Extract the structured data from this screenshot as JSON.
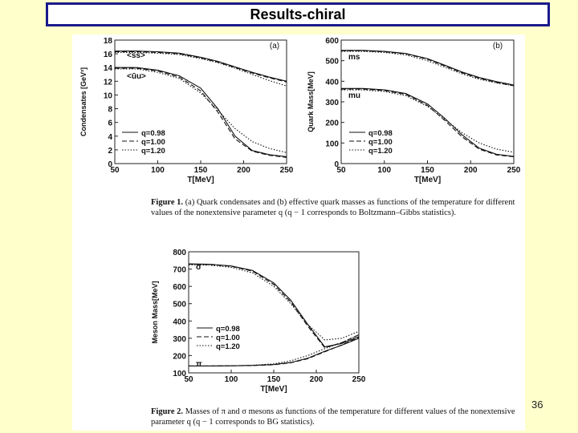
{
  "slide": {
    "title": "Results-chiral",
    "page_number": "36"
  },
  "captions": {
    "fig1_label": "Figure 1.",
    "fig1_text": "(a) Quark condensates and (b) effective quark masses as functions of the temperature for different values of the nonextensive parameter q (q − 1 corresponds to Boltzmann–Gibbs statistics).",
    "fig2_label": "Figure 2.",
    "fig2_text": "Masses of π and σ mesons as functions of the temperature for different values of the nonextensive parameter q (q − 1 corresponds to BG statistics)."
  },
  "chart_data": [
    {
      "type": "line",
      "panel": "(a)",
      "xlabel": "T[MeV]",
      "ylabel": "Condensates [GeV³]",
      "xlim": [
        50,
        250
      ],
      "ylim": [
        0,
        18
      ],
      "xticks": [
        50,
        100,
        150,
        200,
        250
      ],
      "yticks": [
        0,
        2,
        4,
        6,
        8,
        10,
        12,
        14,
        16,
        18
      ],
      "curve_labels": [
        "<s̄s>",
        "<ūu>"
      ],
      "legend": [
        "q=0.98",
        "q=1.00",
        "q=1.20"
      ],
      "x": [
        50,
        75,
        100,
        125,
        150,
        170,
        190,
        210,
        230,
        250
      ],
      "series": [
        {
          "name": "<s̄s> q=0.98",
          "values": [
            16.4,
            16.4,
            16.3,
            16.1,
            15.5,
            14.9,
            14.1,
            13.3,
            12.6,
            12.0
          ]
        },
        {
          "name": "<s̄s> q=1.00",
          "values": [
            16.3,
            16.3,
            16.2,
            16.0,
            15.4,
            14.8,
            14.0,
            13.2,
            12.5,
            11.9
          ]
        },
        {
          "name": "<s̄s> q=1.20",
          "values": [
            16.2,
            16.2,
            16.1,
            15.9,
            15.3,
            14.7,
            13.9,
            13.0,
            12.1,
            11.3
          ]
        },
        {
          "name": "<ūu> q=0.98",
          "values": [
            14.0,
            14.0,
            13.6,
            12.8,
            11.0,
            8.0,
            4.0,
            1.9,
            1.3,
            1.0
          ]
        },
        {
          "name": "<ūu> q=1.00",
          "values": [
            13.9,
            13.9,
            13.5,
            12.6,
            10.6,
            7.5,
            3.6,
            1.8,
            1.2,
            0.9
          ]
        },
        {
          "name": "<ūu> q=1.20",
          "values": [
            13.8,
            13.8,
            13.3,
            12.4,
            10.3,
            7.8,
            5.1,
            3.2,
            2.2,
            1.6
          ]
        }
      ]
    },
    {
      "type": "line",
      "panel": "(b)",
      "xlabel": "T[MeV]",
      "ylabel": "Quark Mass[MeV]",
      "xlim": [
        50,
        250
      ],
      "ylim": [
        0,
        600
      ],
      "xticks": [
        50,
        100,
        150,
        200,
        250
      ],
      "yticks": [
        0,
        100,
        200,
        300,
        400,
        500,
        600
      ],
      "curve_labels": [
        "ms",
        "mu"
      ],
      "legend": [
        "q=0.98",
        "q=1.00",
        "q=1.20"
      ],
      "x": [
        50,
        75,
        100,
        125,
        150,
        170,
        190,
        210,
        230,
        250
      ],
      "series": [
        {
          "name": "ms q=0.98",
          "values": [
            550,
            550,
            545,
            535,
            510,
            478,
            445,
            418,
            398,
            382
          ]
        },
        {
          "name": "ms q=1.00",
          "values": [
            548,
            548,
            543,
            533,
            507,
            474,
            441,
            414,
            394,
            378
          ]
        },
        {
          "name": "ms q=1.20",
          "values": [
            545,
            545,
            540,
            528,
            500,
            468,
            436,
            410,
            392,
            378
          ]
        },
        {
          "name": "mu q=0.98",
          "values": [
            365,
            365,
            358,
            340,
            290,
            220,
            140,
            75,
            45,
            35
          ]
        },
        {
          "name": "mu q=1.00",
          "values": [
            362,
            362,
            355,
            336,
            283,
            210,
            130,
            70,
            42,
            33
          ]
        },
        {
          "name": "mu q=1.20",
          "values": [
            358,
            358,
            350,
            330,
            278,
            215,
            150,
            100,
            70,
            55
          ]
        }
      ]
    },
    {
      "type": "line",
      "xlabel": "T[MeV]",
      "ylabel": "Meson Mass[MeV]",
      "xlim": [
        50,
        250
      ],
      "ylim": [
        100,
        800
      ],
      "xticks": [
        50,
        100,
        150,
        200,
        250
      ],
      "yticks": [
        100,
        200,
        300,
        400,
        500,
        600,
        700,
        800
      ],
      "curve_labels": [
        "σ",
        "π"
      ],
      "legend": [
        "q=0.98",
        "q=1.00",
        "q=1.20"
      ],
      "x": [
        50,
        75,
        100,
        125,
        150,
        170,
        190,
        210,
        230,
        250
      ],
      "series": [
        {
          "name": "σ q=0.98",
          "values": [
            730,
            728,
            718,
            692,
            620,
            520,
            380,
            250,
            270,
            310
          ]
        },
        {
          "name": "σ q=1.00",
          "values": [
            728,
            726,
            716,
            688,
            612,
            510,
            370,
            245,
            275,
            320
          ]
        },
        {
          "name": "σ q=1.20",
          "values": [
            725,
            722,
            710,
            678,
            600,
            500,
            380,
            290,
            300,
            340
          ]
        },
        {
          "name": "π q=0.98",
          "values": [
            140,
            140,
            141,
            143,
            148,
            160,
            185,
            225,
            260,
            300
          ]
        },
        {
          "name": "π q=1.00",
          "values": [
            140,
            140,
            141,
            142,
            147,
            158,
            182,
            222,
            262,
            305
          ]
        },
        {
          "name": "π q=1.20",
          "values": [
            140,
            140,
            141,
            144,
            152,
            170,
            200,
            240,
            275,
            320
          ]
        }
      ]
    }
  ]
}
